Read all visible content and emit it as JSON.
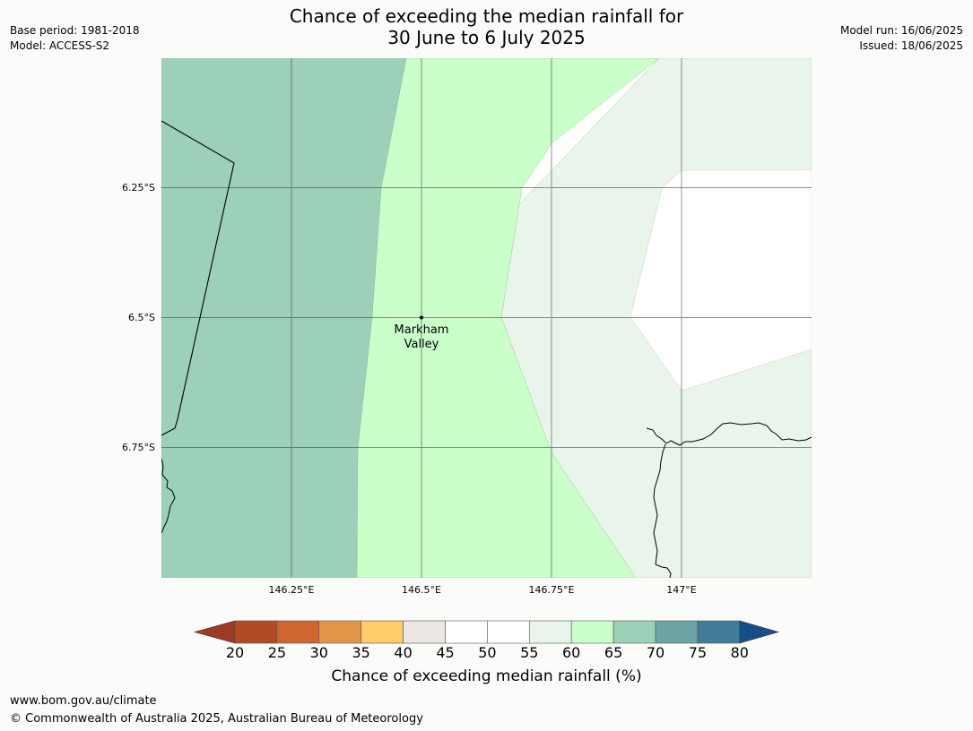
{
  "title": {
    "line1": "Chance of exceeding the median rainfall for",
    "line2": "30 June to 6 July 2025"
  },
  "meta_left": {
    "base_period": "Base period: 1981-2018",
    "model": "Model: ACCESS-S2"
  },
  "meta_right": {
    "model_run": "Model run: 16/06/2025",
    "issued": "Issued: 18/06/2025"
  },
  "map": {
    "lon_range": [
      146.0,
      147.25
    ],
    "lat_range": [
      -7.0,
      -6.0
    ],
    "lon_ticks": [
      "146.25°E",
      "146.5°E",
      "146.75°E",
      "147°E"
    ],
    "lat_ticks": [
      "6.25°S",
      "6.5°S",
      "6.75°S"
    ],
    "place": {
      "name_line1": "Markham",
      "name_line2": "Valley",
      "lon": 146.5,
      "lat": -6.5
    },
    "category_colors": {
      "65-70": "#9dd0b9",
      "60-65": "#caffca",
      "55-60": "#e9f5ea",
      "45-55": "#ffffff"
    }
  },
  "colorbar": {
    "ticks": [
      "20",
      "25",
      "30",
      "35",
      "40",
      "45",
      "50",
      "55",
      "60",
      "65",
      "70",
      "75",
      "80"
    ],
    "label": "Chance of exceeding median rainfall (%)",
    "colors": [
      "#b24a27",
      "#cf6632",
      "#e3964a",
      "#ffcc68",
      "#ece7e3",
      "#ffffff",
      "#ffffff",
      "#e9f5ea",
      "#caffca",
      "#9dd0b9",
      "#6da5a6",
      "#417b9a"
    ],
    "under_color": "#9e3a26",
    "over_color": "#174e88"
  },
  "footer": {
    "url": "www.bom.gov.au/climate",
    "copyright": "© Commonwealth of Australia 2025, Australian Bureau of Meteorology"
  }
}
